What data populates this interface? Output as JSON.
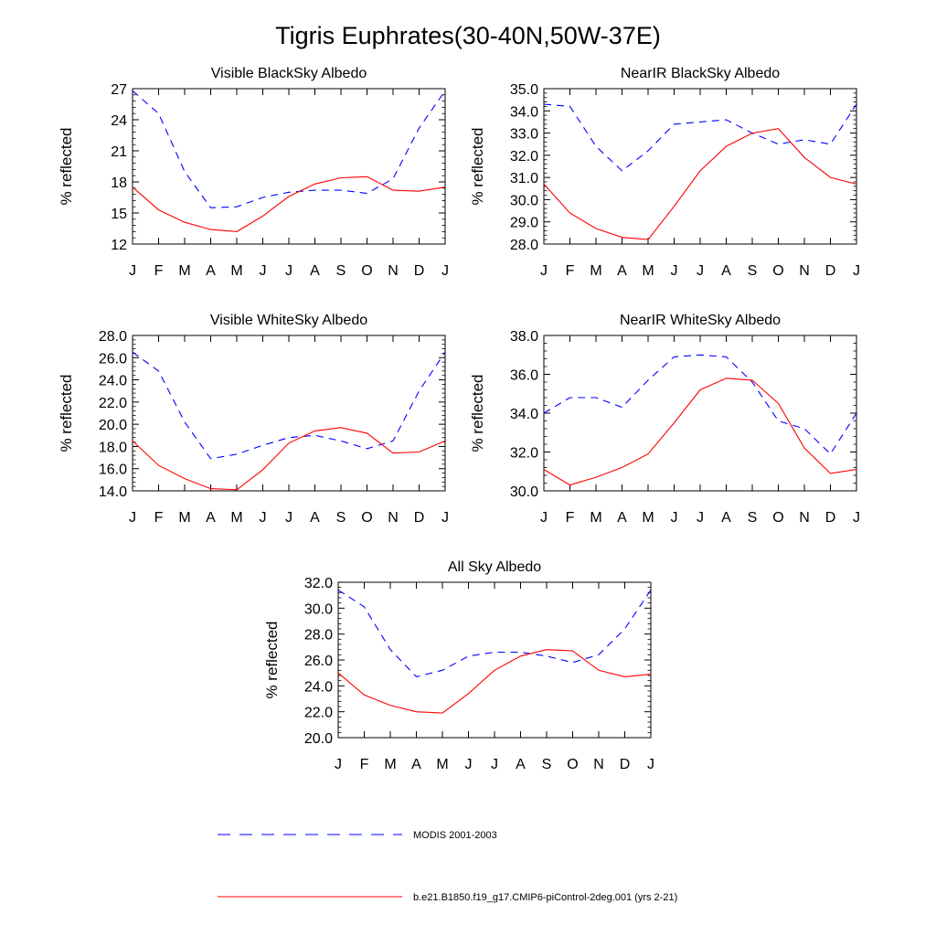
{
  "figure": {
    "title": "Tigris Euphrates(30-40N,50W-37E)",
    "colors": {
      "modis": "#0000ff",
      "model": "#ff0000"
    },
    "legend": [
      {
        "label": "MODIS 2001-2003",
        "style": "dashed",
        "color": "#0000ff"
      },
      {
        "label": "b.e21.B1850.f19_g17.CMIP6-piControl-2deg.001 (yrs 2-21)",
        "style": "solid",
        "color": "#ff0000"
      }
    ]
  },
  "chart_data": [
    {
      "type": "line",
      "title": "Visible BlackSky Albedo",
      "xlabel": "",
      "ylabel": "% reflected",
      "categories": [
        "J",
        "F",
        "M",
        "A",
        "M",
        "J",
        "J",
        "A",
        "S",
        "O",
        "N",
        "D",
        "J"
      ],
      "ylim": [
        12,
        27
      ],
      "yticks": [
        "12",
        "15",
        "18",
        "21",
        "24",
        "27"
      ],
      "series": [
        {
          "name": "MODIS 2001-2003",
          "values": [
            26.8,
            24.6,
            19.0,
            15.5,
            15.6,
            16.5,
            17.0,
            17.2,
            17.2,
            16.9,
            18.3,
            23.2,
            26.8
          ]
        },
        {
          "name": "b.e21.B1850.f19_g17.CMIP6-piControl-2deg.001 (yrs 2-21)",
          "values": [
            17.5,
            15.3,
            14.1,
            13.4,
            13.2,
            14.7,
            16.6,
            17.8,
            18.4,
            18.5,
            17.2,
            17.1,
            17.5
          ]
        }
      ]
    },
    {
      "type": "line",
      "title": "NearIR BlackSky Albedo",
      "xlabel": "",
      "ylabel": "% reflected",
      "categories": [
        "J",
        "F",
        "M",
        "A",
        "M",
        "J",
        "J",
        "A",
        "S",
        "O",
        "N",
        "D",
        "J"
      ],
      "ylim": [
        28.0,
        35.0
      ],
      "yticks": [
        "28.0",
        "29.0",
        "30.0",
        "31.0",
        "32.0",
        "33.0",
        "34.0",
        "35.0"
      ],
      "series": [
        {
          "name": "MODIS 2001-2003",
          "values": [
            34.3,
            34.2,
            32.4,
            31.3,
            32.2,
            33.4,
            33.5,
            33.6,
            33.0,
            32.5,
            32.7,
            32.5,
            34.3
          ]
        },
        {
          "name": "b.e21.B1850.f19_g17.CMIP6-piControl-2deg.001 (yrs 2-21)",
          "values": [
            30.7,
            29.4,
            28.7,
            28.3,
            28.2,
            29.7,
            31.3,
            32.4,
            33.0,
            33.2,
            31.9,
            31.0,
            30.7
          ]
        }
      ]
    },
    {
      "type": "line",
      "title": "Visible WhiteSky Albedo",
      "xlabel": "",
      "ylabel": "% reflected",
      "categories": [
        "J",
        "F",
        "M",
        "A",
        "M",
        "J",
        "J",
        "A",
        "S",
        "O",
        "N",
        "D",
        "J"
      ],
      "ylim": [
        14.0,
        28.0
      ],
      "yticks": [
        "14.0",
        "16.0",
        "18.0",
        "20.0",
        "22.0",
        "24.0",
        "26.0",
        "28.0"
      ],
      "series": [
        {
          "name": "MODIS 2001-2003",
          "values": [
            26.5,
            24.8,
            20.2,
            16.9,
            17.3,
            18.1,
            18.8,
            19.0,
            18.5,
            17.8,
            18.5,
            23.0,
            26.5
          ]
        },
        {
          "name": "b.e21.B1850.f19_g17.CMIP6-piControl-2deg.001 (yrs 2-21)",
          "values": [
            18.5,
            16.3,
            15.1,
            14.2,
            14.1,
            15.9,
            18.3,
            19.4,
            19.7,
            19.2,
            17.4,
            17.5,
            18.5
          ]
        }
      ]
    },
    {
      "type": "line",
      "title": "NearIR WhiteSky Albedo",
      "xlabel": "",
      "ylabel": "% reflected",
      "categories": [
        "J",
        "F",
        "M",
        "A",
        "M",
        "J",
        "J",
        "A",
        "S",
        "O",
        "N",
        "D",
        "J"
      ],
      "ylim": [
        30.0,
        38.0
      ],
      "yticks": [
        "30.0",
        "32.0",
        "34.0",
        "36.0",
        "38.0"
      ],
      "series": [
        {
          "name": "MODIS 2001-2003",
          "values": [
            34.0,
            34.8,
            34.8,
            34.3,
            35.7,
            36.9,
            37.0,
            36.9,
            35.6,
            33.6,
            33.2,
            31.9,
            34.0
          ]
        },
        {
          "name": "b.e21.B1850.f19_g17.CMIP6-piControl-2deg.001 (yrs 2-21)",
          "values": [
            31.1,
            30.3,
            30.7,
            31.2,
            31.9,
            33.5,
            35.2,
            35.8,
            35.7,
            34.5,
            32.2,
            30.9,
            31.1
          ]
        }
      ]
    },
    {
      "type": "line",
      "title": "All Sky Albedo",
      "xlabel": "",
      "ylabel": "% reflected",
      "categories": [
        "J",
        "F",
        "M",
        "A",
        "M",
        "J",
        "J",
        "A",
        "S",
        "O",
        "N",
        "D",
        "J"
      ],
      "ylim": [
        20.0,
        32.0
      ],
      "yticks": [
        "20.0",
        "22.0",
        "24.0",
        "26.0",
        "28.0",
        "30.0",
        "32.0"
      ],
      "series": [
        {
          "name": "MODIS 2001-2003",
          "values": [
            31.4,
            30.1,
            26.8,
            24.7,
            25.2,
            26.3,
            26.6,
            26.6,
            26.3,
            25.8,
            26.4,
            28.4,
            31.4
          ]
        },
        {
          "name": "b.e21.B1850.f19_g17.CMIP6-piControl-2deg.001 (yrs 2-21)",
          "values": [
            25.0,
            23.3,
            22.5,
            22.0,
            21.9,
            23.4,
            25.2,
            26.3,
            26.8,
            26.7,
            25.2,
            24.7,
            24.9
          ]
        }
      ]
    }
  ]
}
